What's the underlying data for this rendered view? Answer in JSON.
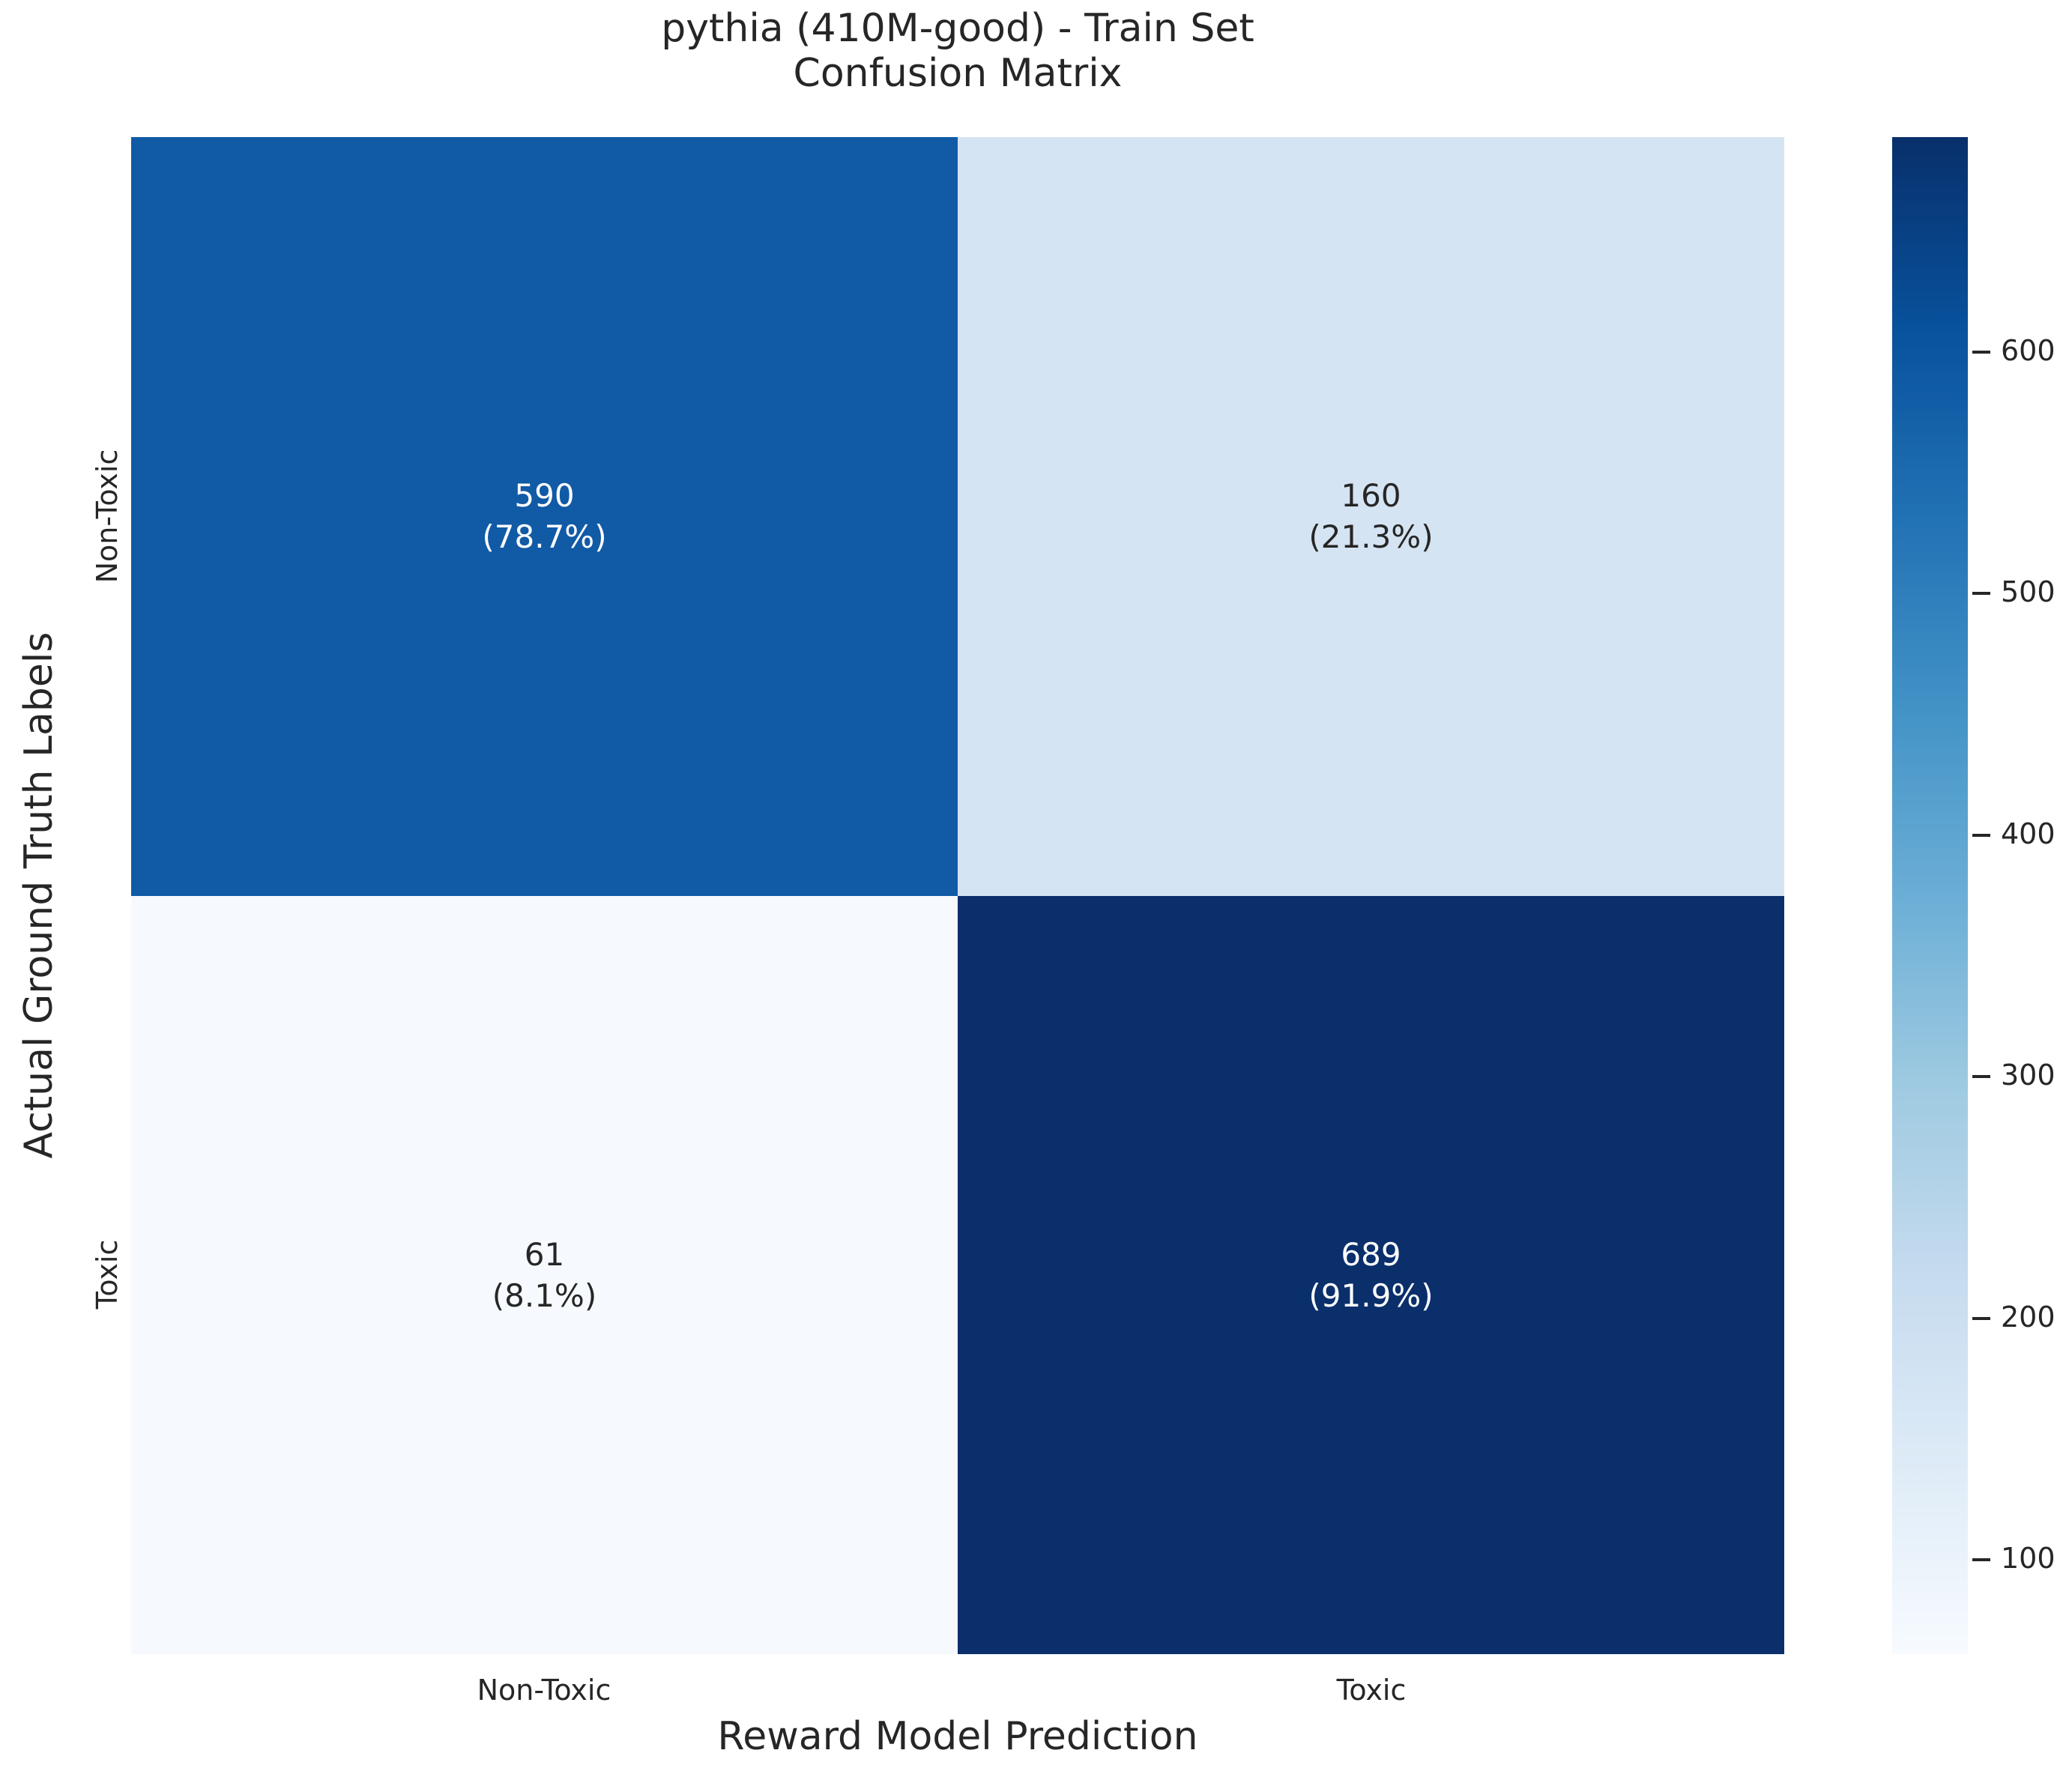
{
  "title": {
    "line1": "pythia (410M-good) - Train Set",
    "line2": "Confusion Matrix"
  },
  "axes": {
    "x_label": "Reward Model Prediction",
    "y_label": "Actual Ground Truth Labels",
    "x_tick_1": "Non-Toxic",
    "x_tick_2": "Toxic",
    "y_tick_1": "Non-Toxic",
    "y_tick_2": "Toxic"
  },
  "chart_data": {
    "type": "heatmap",
    "title": "pythia (410M-good) - Train Set\nConfusion Matrix",
    "xlabel": "Reward Model Prediction",
    "ylabel": "Actual Ground Truth Labels",
    "x_categories": [
      "Non-Toxic",
      "Toxic"
    ],
    "y_categories": [
      "Non-Toxic",
      "Toxic"
    ],
    "matrix": [
      [
        590,
        160
      ],
      [
        61,
        689
      ]
    ],
    "percent_matrix": [
      [
        "78.7%",
        "21.3%"
      ],
      [
        "8.1%",
        "91.9%"
      ]
    ],
    "cells": [
      {
        "row": "Non-Toxic",
        "col": "Non-Toxic",
        "count": "590",
        "percent": "(78.7%)",
        "bg": "#115aa6",
        "fg": "#ffffff"
      },
      {
        "row": "Non-Toxic",
        "col": "Toxic",
        "count": "160",
        "percent": "(21.3%)",
        "bg": "#d5e4f2",
        "fg": "#262626"
      },
      {
        "row": "Toxic",
        "col": "Non-Toxic",
        "count": "61",
        "percent": "(8.1%)",
        "bg": "#f6fafe",
        "fg": "#262626"
      },
      {
        "row": "Toxic",
        "col": "Toxic",
        "count": "689",
        "percent": "(91.9%)",
        "bg": "#0a2f6b",
        "fg": "#ffffff"
      }
    ],
    "colormap": "Blues",
    "colorbar": {
      "vmin": 61,
      "vmax": 689,
      "ticks": [
        100,
        200,
        300,
        400,
        500,
        600
      ],
      "gradient_stops": [
        "#f7fbff",
        "#deebf7",
        "#c6dbef",
        "#9ecae1",
        "#6baed6",
        "#4292c6",
        "#2171b5",
        "#08519c",
        "#08306b"
      ]
    },
    "legend": false,
    "grid": false,
    "text_color": "#262626",
    "background_color": "#ffffff"
  }
}
